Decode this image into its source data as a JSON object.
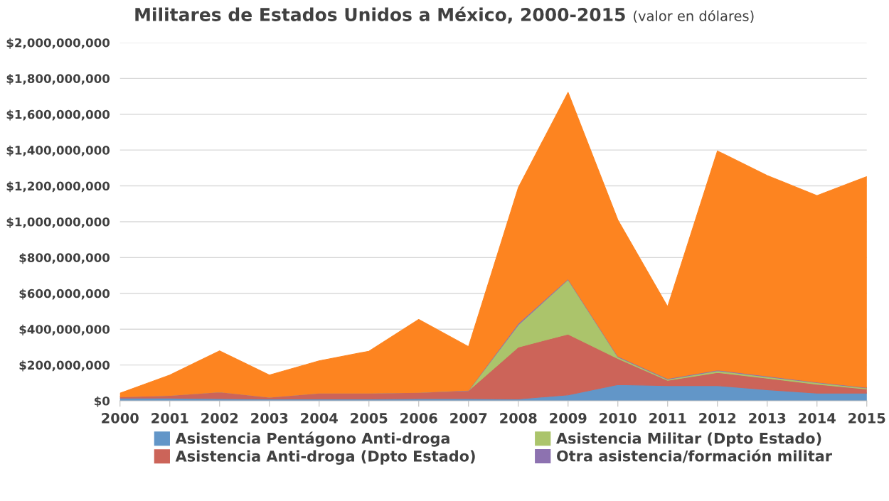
{
  "chart_data": {
    "type": "area",
    "stacked": true,
    "title": "Militares de Estados Unidos a México, 2000-2015",
    "subtitle": "(valor en dólares)",
    "categories": [
      "2000",
      "2001",
      "2002",
      "2003",
      "2004",
      "2005",
      "2006",
      "2007",
      "2008",
      "2009",
      "2010",
      "2011",
      "2012",
      "2013",
      "2014",
      "2015"
    ],
    "series": [
      {
        "name": "Asistencia Pentágono Anti-droga",
        "color": "#6296c8",
        "values": [
          15000000,
          15000000,
          12000000,
          10000000,
          10000000,
          10000000,
          12000000,
          12000000,
          10000000,
          33000000,
          90000000,
          85000000,
          85000000,
          62000000,
          43000000,
          43000000
        ]
      },
      {
        "name": "Asistencia Anti-droga (Dpto Estado)",
        "color": "#cc6459",
        "values": [
          7000000,
          15000000,
          38000000,
          10000000,
          33000000,
          33000000,
          35000000,
          45000000,
          290000000,
          339000000,
          146000000,
          29000000,
          73000000,
          64000000,
          49000000,
          23000000
        ]
      },
      {
        "name": "Asistencia Militar (Dpto Estado)",
        "color": "#abc46b",
        "values": [
          0,
          0,
          0,
          0,
          0,
          0,
          0,
          0,
          124000000,
          305000000,
          9000000,
          6000000,
          10000000,
          8000000,
          9000000,
          6000000
        ]
      },
      {
        "name": "Otra asistencia/formación militar",
        "color": "#8d72b0",
        "values": [
          0,
          0,
          0,
          0,
          0,
          0,
          0,
          2000000,
          8000000,
          4000000,
          4000000,
          4000000,
          4000000,
          4000000,
          3000000,
          3000000
        ]
      },
      {
        "color": "#fd8420",
        "values": [
          21000000,
          114000000,
          229000000,
          124000000,
          180000000,
          234000000,
          407000000,
          244000000,
          758000000,
          1041000000,
          761000000,
          402000000,
          1223000000,
          1120000000,
          1042000000,
          1177000000
        ]
      }
    ],
    "ylim": [
      0,
      2000000000
    ],
    "yticks": [
      {
        "value": 0,
        "label": "$0"
      },
      {
        "value": 200000000,
        "label": "$200,000,000"
      },
      {
        "value": 400000000,
        "label": "$400,000,000"
      },
      {
        "value": 600000000,
        "label": "$600,000,000"
      },
      {
        "value": 800000000,
        "label": "$800,000,000"
      },
      {
        "value": 1000000000,
        "label": "$1,000,000,000"
      },
      {
        "value": 1200000000,
        "label": "$1,200,000,000"
      },
      {
        "value": 1400000000,
        "label": "$1,400,000,000"
      },
      {
        "value": 1600000000,
        "label": "$1,600,000,000"
      },
      {
        "value": 1800000000,
        "label": "$1,800,000,000"
      },
      {
        "value": 2000000000,
        "label": "$2,000,000,000"
      }
    ],
    "grid": "y",
    "legend": "bottom"
  }
}
